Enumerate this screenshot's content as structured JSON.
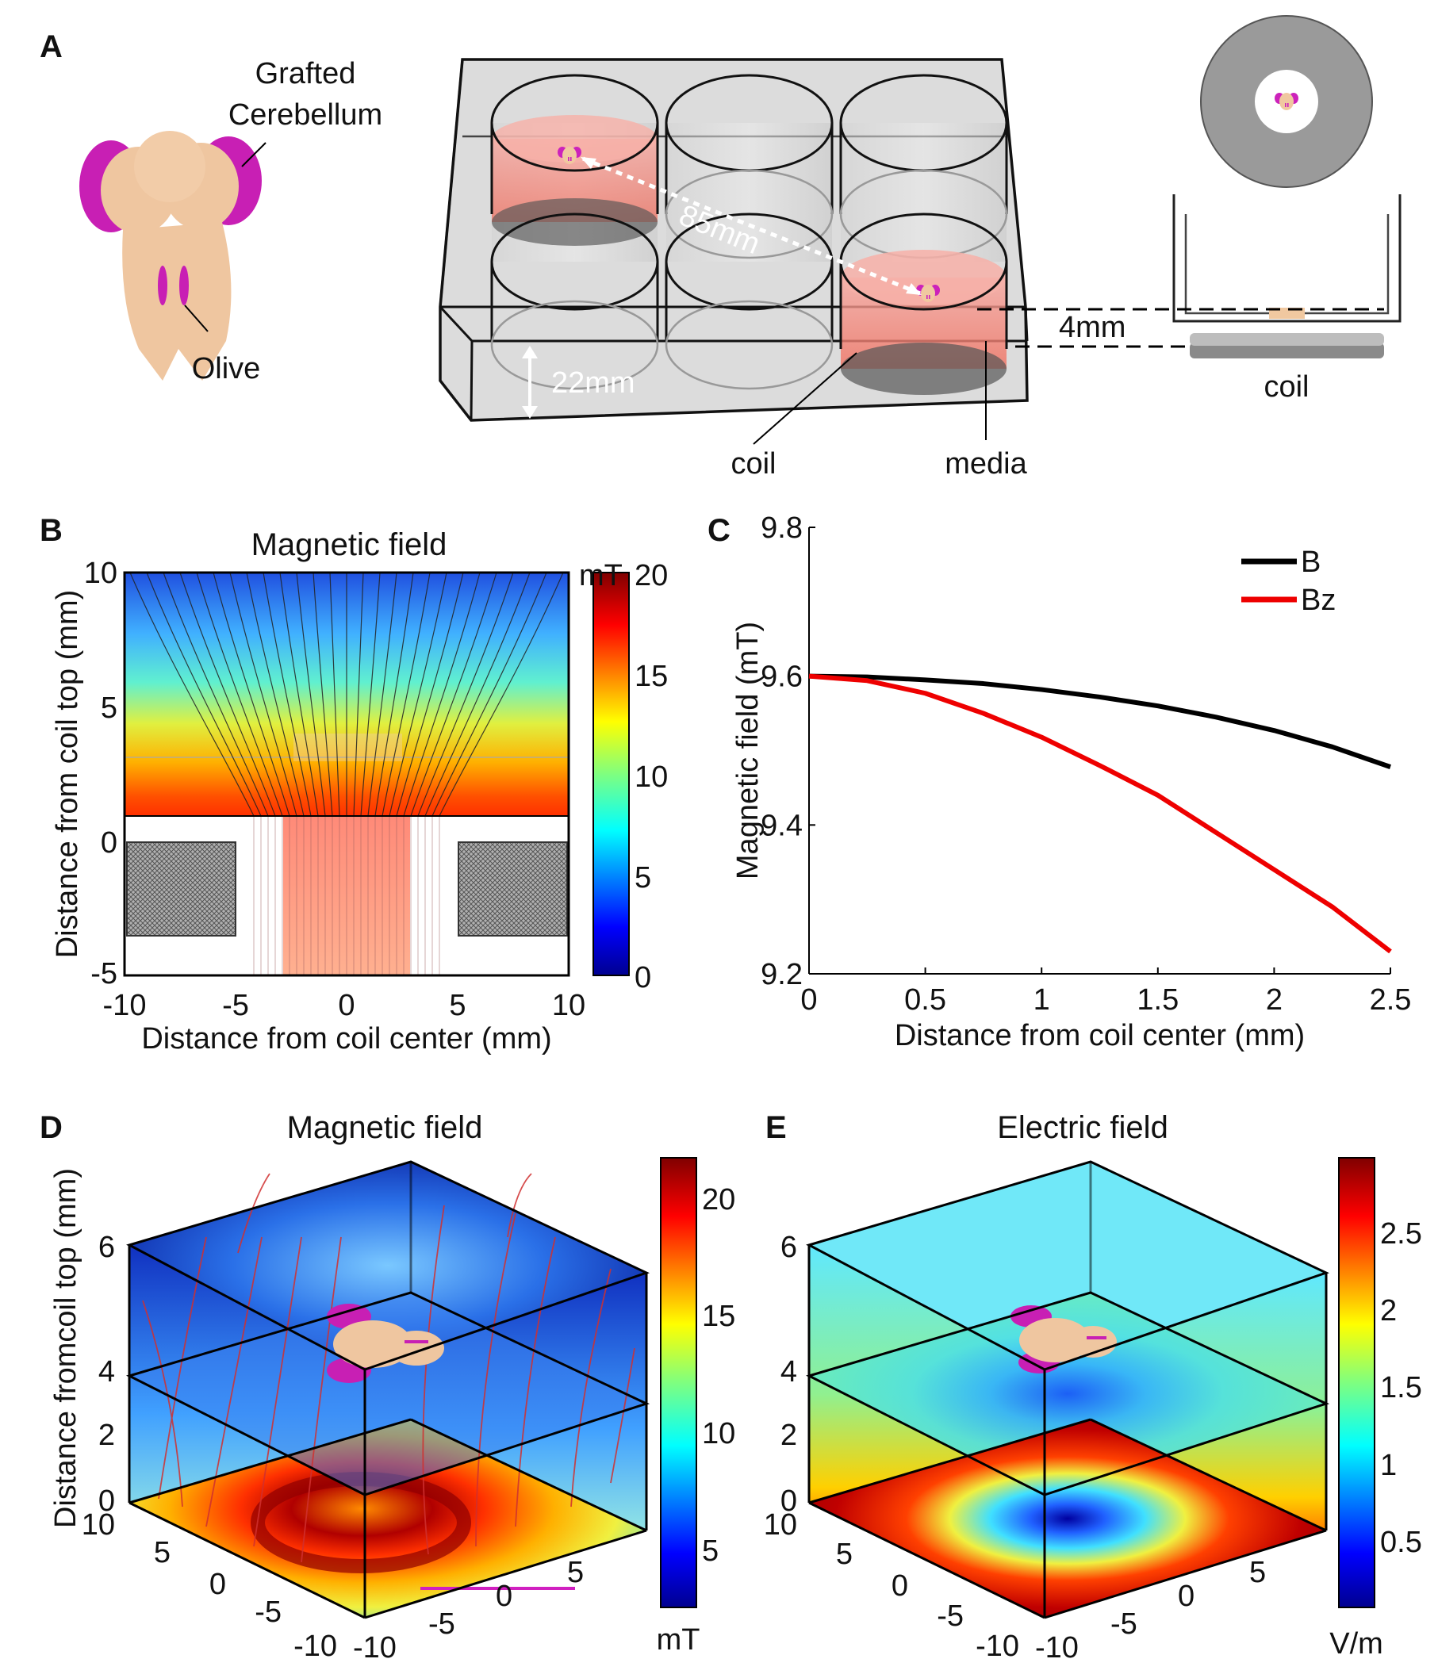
{
  "panel_letters": {
    "a": "A",
    "b": "B",
    "c": "C",
    "d": "D",
    "e": "E"
  },
  "panel_a": {
    "grafted_label_line1": "Grafted",
    "grafted_label_line2": "Cerebellum",
    "olive_label": "Olive",
    "distance_85": "85mm",
    "distance_22": "22mm",
    "distance_4": "4mm",
    "coil_label": "coil",
    "media_label": "media",
    "side_coil_label": "coil"
  },
  "panel_b": {
    "title": "Magnetic field",
    "xlabel": "Distance from coil center (mm)",
    "ylabel": "Distance from coil top (mm)",
    "x_ticks": [
      "-10",
      "-5",
      "0",
      "5",
      "10"
    ],
    "y_ticks": [
      "10",
      "5",
      "0",
      "-5"
    ],
    "colorbar_unit": "mT",
    "colorbar_ticks": [
      "20",
      "15",
      "10",
      "5",
      "0"
    ]
  },
  "panel_d": {
    "title": "Magnetic field",
    "ylabel": "Distance fromcoil top (mm)",
    "z_ticks": [
      "6",
      "4",
      "2",
      "0"
    ],
    "left_axis_ticks": [
      "10",
      "5",
      "0",
      "-5",
      "-10"
    ],
    "right_axis_ticks": [
      "-10",
      "-5",
      "0",
      "5"
    ],
    "colorbar_ticks": [
      "20",
      "15",
      "10",
      "5"
    ],
    "colorbar_unit": "mT"
  },
  "panel_e": {
    "title": "Electric field",
    "z_ticks": [
      "6",
      "4",
      "2",
      "0"
    ],
    "left_axis_ticks": [
      "10",
      "5",
      "0",
      "-5",
      "-10"
    ],
    "right_axis_ticks": [
      "-10",
      "-5",
      "0",
      "5"
    ],
    "colorbar_ticks": [
      "2.5",
      "2",
      "1.5",
      "1",
      "0.5"
    ],
    "colorbar_unit": "V/m"
  },
  "chart_data": {
    "type": "line",
    "panel": "C",
    "title": "",
    "xlabel": "Distance from coil center (mm)",
    "ylabel": "Magnetic field (mT)",
    "xlim": [
      0,
      2.5
    ],
    "ylim": [
      9.2,
      9.8
    ],
    "x_ticks": [
      0,
      0.5,
      1,
      1.5,
      2,
      2.5
    ],
    "x_tick_labels": [
      "0",
      "0.5",
      "1",
      "1.5",
      "2",
      "2.5"
    ],
    "y_ticks": [
      9.2,
      9.4,
      9.6,
      9.8
    ],
    "y_tick_labels": [
      "9.2",
      "9.4",
      "9.6",
      "9.8"
    ],
    "legend_position": "top-right",
    "x": [
      0,
      0.25,
      0.5,
      0.75,
      1,
      1.25,
      1.5,
      1.75,
      2,
      2.25,
      2.5
    ],
    "series": [
      {
        "name": "B",
        "color": "#000000",
        "values": [
          9.6,
          9.599,
          9.595,
          9.59,
          9.582,
          9.572,
          9.56,
          9.545,
          9.527,
          9.505,
          9.478
        ]
      },
      {
        "name": "Bz",
        "color": "#ee0000",
        "values": [
          9.6,
          9.594,
          9.577,
          9.55,
          9.518,
          9.48,
          9.44,
          9.39,
          9.34,
          9.29,
          9.23
        ]
      }
    ]
  }
}
